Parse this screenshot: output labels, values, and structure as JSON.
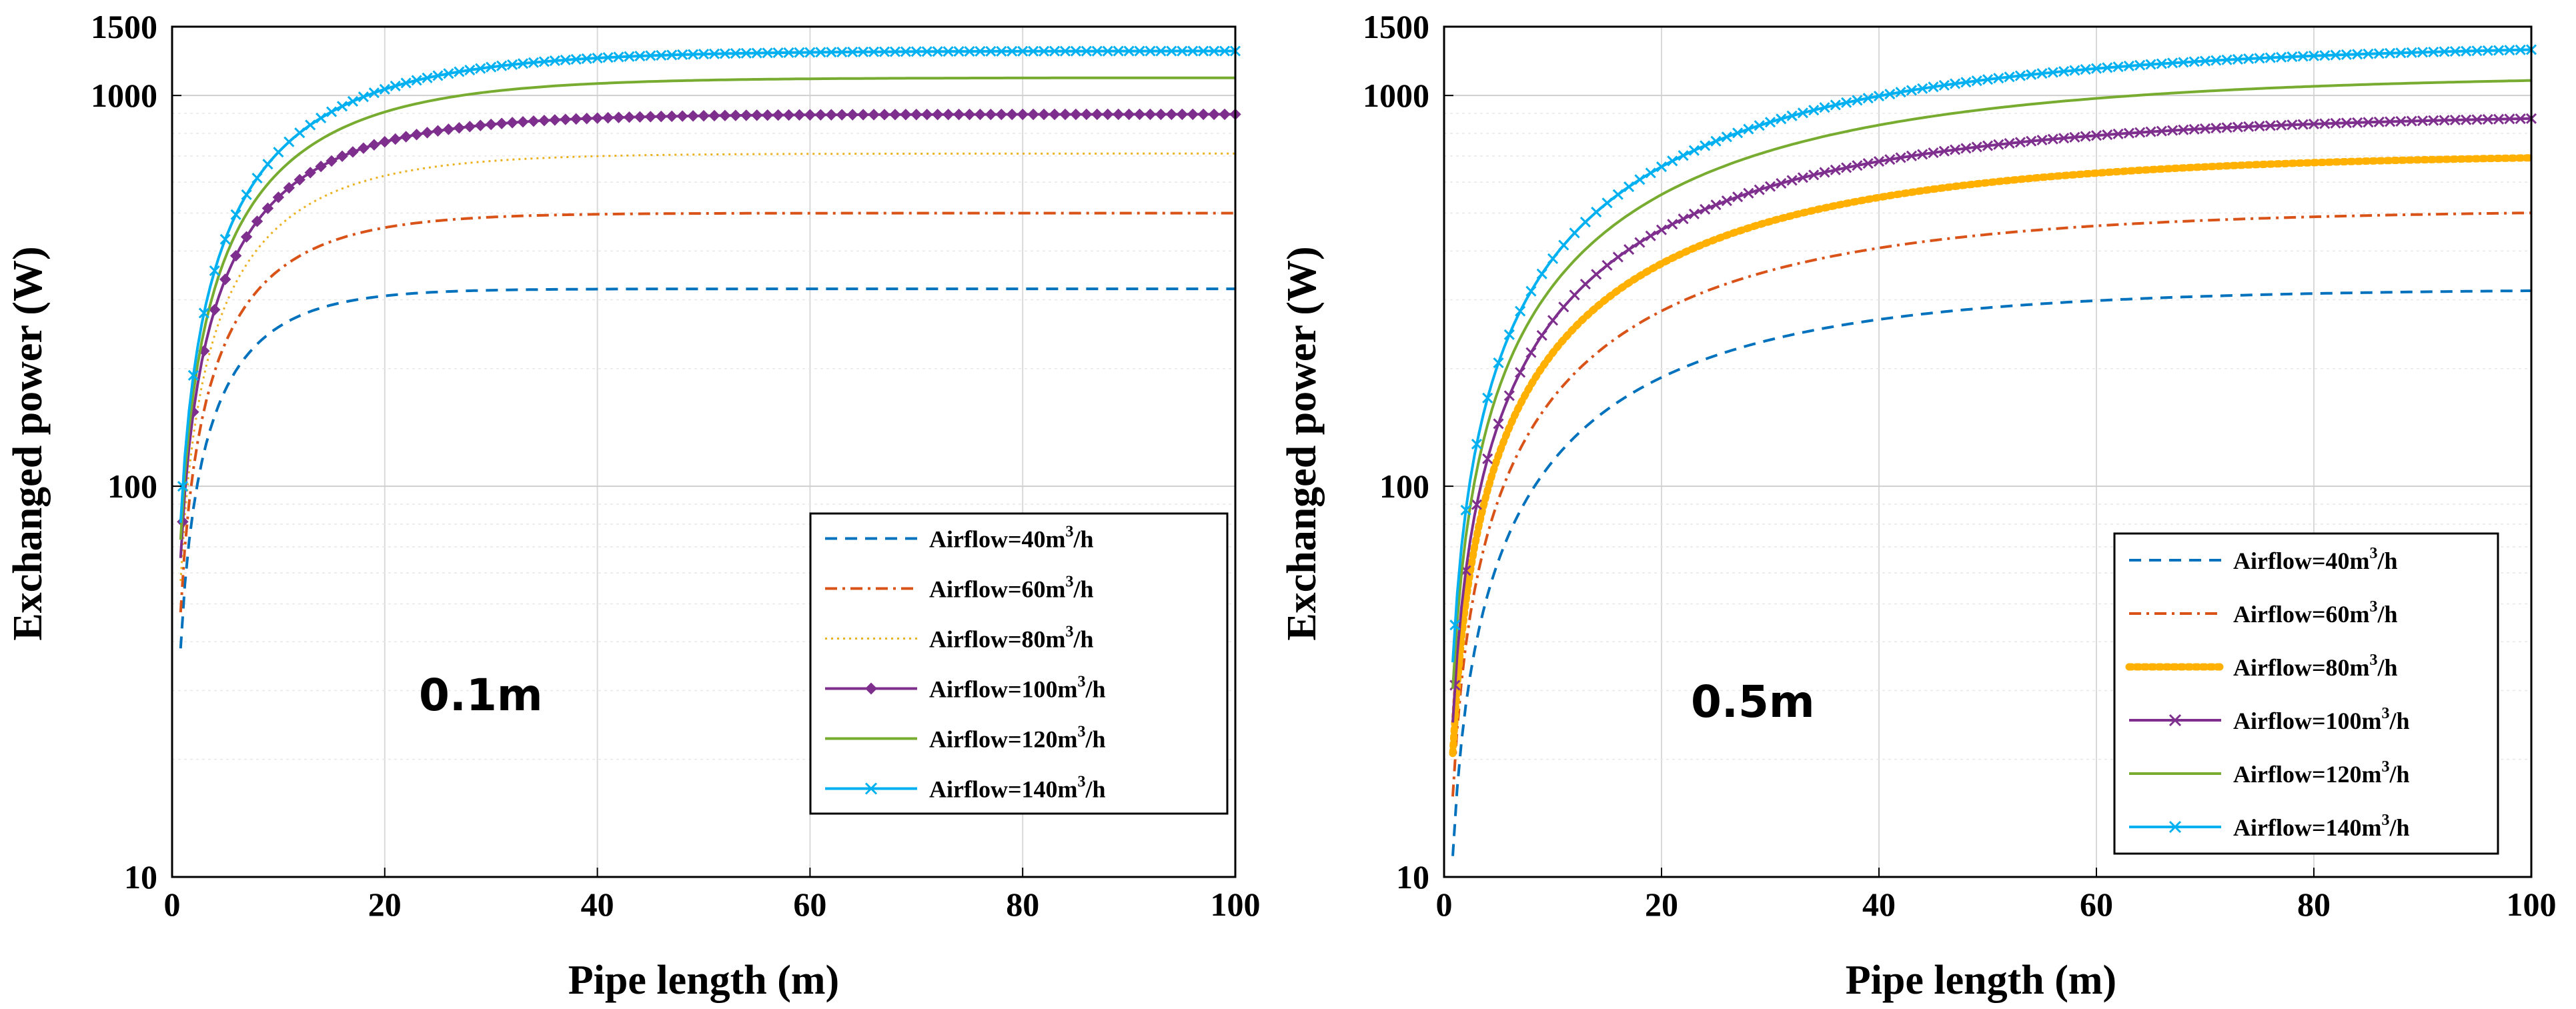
{
  "chart_data": [
    {
      "type": "line",
      "annotation": "0.1m",
      "xlabel": "Pipe length (m)",
      "ylabel": "Exchanged power (W)",
      "xlim": [
        0,
        100
      ],
      "ylim": [
        10,
        1500
      ],
      "yscale": "log",
      "grid": true,
      "x_ticks": [
        0,
        20,
        40,
        60,
        80,
        100
      ],
      "y_ticks": [
        10,
        100,
        1000,
        1500
      ],
      "legend_location": "bottom-right",
      "series": [
        {
          "name": "Airflow=40m3/h",
          "legend_base": "Airflow=40m",
          "legend_sup": "3",
          "legend_tail": "/h",
          "color": "#0072BD",
          "style": "dashed",
          "marker": "none",
          "plateau": 320,
          "k": 0.16
        },
        {
          "name": "Airflow=60m3/h",
          "legend_base": "Airflow=60m",
          "legend_sup": "3",
          "legend_tail": "/h",
          "color": "#D95319",
          "style": "dashdot",
          "marker": "none",
          "plateau": 500,
          "k": 0.125
        },
        {
          "name": "Airflow=80m3/h",
          "legend_base": "Airflow=80m",
          "legend_sup": "3",
          "legend_tail": "/h",
          "color": "#EDB120",
          "style": "dotted",
          "marker": "none",
          "plateau": 710,
          "k": 0.105
        },
        {
          "name": "Airflow=100m3/h",
          "legend_base": "Airflow=100m",
          "legend_sup": "3",
          "legend_tail": "/h",
          "color": "#7E2F8E",
          "style": "solid",
          "marker": "diamond",
          "plateau": 895,
          "k": 0.095
        },
        {
          "name": "Airflow=120m3/h",
          "legend_base": "Airflow=120m",
          "legend_sup": "3",
          "legend_tail": "/h",
          "color": "#77AC30",
          "style": "solid",
          "marker": "none",
          "plateau": 1110,
          "k": 0.085
        },
        {
          "name": "Airflow=140m3/h",
          "legend_base": "Airflow=140m",
          "legend_sup": "3",
          "legend_tail": "/h",
          "color": "#00B0F0",
          "style": "solid",
          "marker": "x",
          "plateau": 1300,
          "k": 0.08
        }
      ]
    },
    {
      "type": "line",
      "annotation": "0.5m",
      "xlabel": "Pipe length (m)",
      "ylabel": "Exchanged power (W)",
      "xlim": [
        0,
        100
      ],
      "ylim": [
        10,
        1500
      ],
      "yscale": "log",
      "grid": true,
      "x_ticks": [
        0,
        20,
        40,
        60,
        80,
        100
      ],
      "y_ticks": [
        10,
        100,
        1000,
        1500
      ],
      "legend_location": "bottom-right",
      "series": [
        {
          "name": "Airflow=40m3/h",
          "legend_base": "Airflow=40m",
          "legend_sup": "3",
          "legend_tail": "/h",
          "color": "#0072BD",
          "style": "dashed",
          "marker": "none",
          "plateau": 320,
          "k": 0.045
        },
        {
          "name": "Airflow=60m3/h",
          "legend_base": "Airflow=60m",
          "legend_sup": "3",
          "legend_tail": "/h",
          "color": "#D95319",
          "style": "dashdot",
          "marker": "none",
          "plateau": 510,
          "k": 0.04
        },
        {
          "name": "Airflow=80m3/h",
          "legend_base": "Airflow=80m",
          "legend_sup": "3",
          "legend_tail": "/h",
          "color": "#FFB000",
          "style": "thickdotted",
          "marker": "none",
          "plateau": 710,
          "k": 0.037
        },
        {
          "name": "Airflow=100m3/h",
          "legend_base": "Airflow=100m",
          "legend_sup": "3",
          "legend_tail": "/h",
          "color": "#7E2F8E",
          "style": "solid",
          "marker": "x",
          "plateau": 900,
          "k": 0.035
        },
        {
          "name": "Airflow=120m3/h",
          "legend_base": "Airflow=120m",
          "legend_sup": "3",
          "legend_tail": "/h",
          "color": "#77AC30",
          "style": "solid",
          "marker": "none",
          "plateau": 1130,
          "k": 0.034
        },
        {
          "name": "Airflow=140m3/h",
          "legend_base": "Airflow=140m",
          "legend_sup": "3",
          "legend_tail": "/h",
          "color": "#00B0F0",
          "style": "solid",
          "marker": "x",
          "plateau": 1360,
          "k": 0.033
        }
      ]
    }
  ]
}
